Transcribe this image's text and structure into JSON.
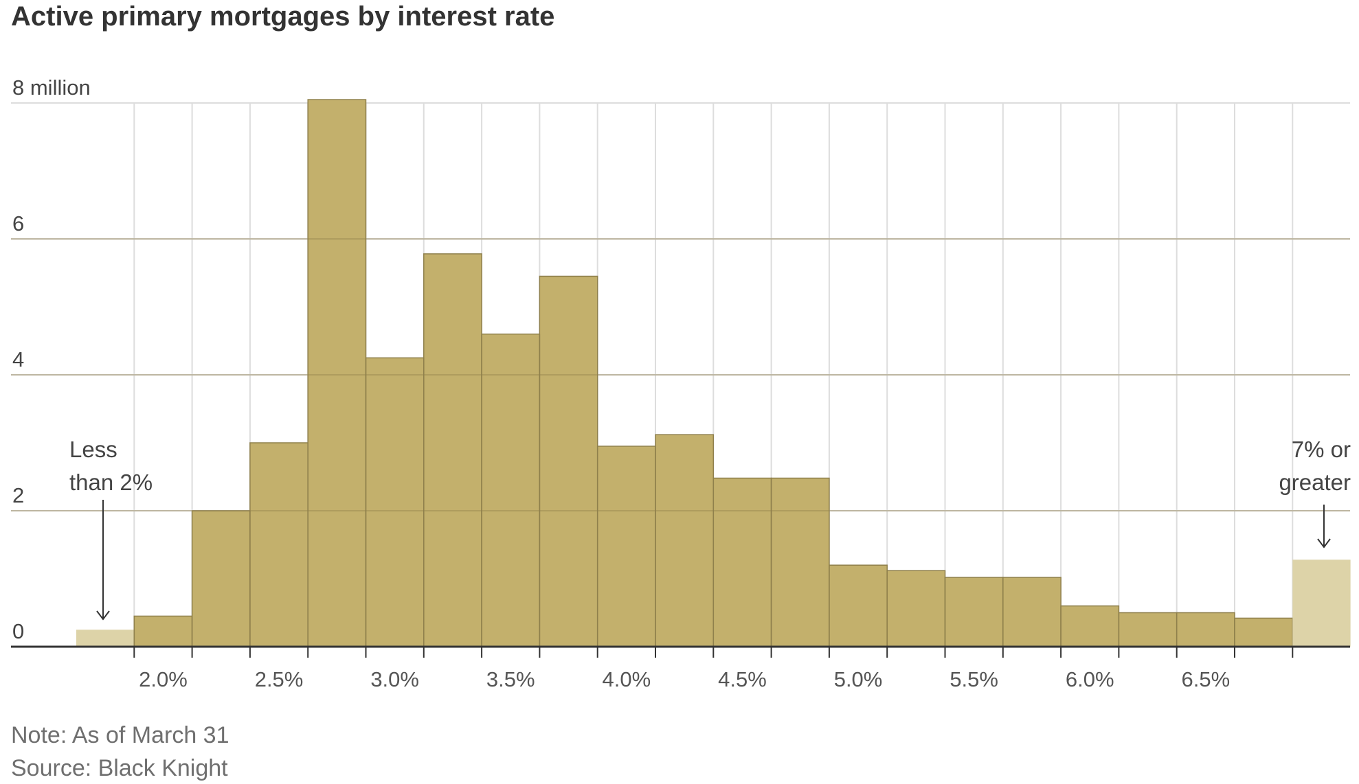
{
  "chart_data": {
    "type": "bar",
    "title": "Active primary mortgages by interest rate",
    "bins": [
      "1.75",
      "2.0",
      "2.25",
      "2.5",
      "2.75",
      "3.0",
      "3.25",
      "3.5",
      "3.75",
      "4.0",
      "4.25",
      "4.5",
      "4.75",
      "5.0",
      "5.25",
      "5.5",
      "5.75",
      "6.0",
      "6.25",
      "6.5",
      "6.75",
      "7.0"
    ],
    "values": [
      0.25,
      0.45,
      2.0,
      3.0,
      8.05,
      4.25,
      5.78,
      4.6,
      5.45,
      2.95,
      3.12,
      2.48,
      2.48,
      1.2,
      1.12,
      1.02,
      1.02,
      0.6,
      0.5,
      0.5,
      0.42,
      1.28
    ],
    "highlight": [
      "light",
      "dark",
      "dark",
      "dark",
      "dark",
      "dark",
      "dark",
      "dark",
      "dark",
      "dark",
      "dark",
      "dark",
      "dark",
      "dark",
      "dark",
      "dark",
      "dark",
      "dark",
      "dark",
      "dark",
      "dark",
      "light"
    ],
    "colors": {
      "bar": "#c3b06c",
      "bar_light": "#ddd3a8",
      "bar_stroke": "#8f804c",
      "grid": "#dddddd",
      "axis": "#333333"
    },
    "xticks": [
      "2.0%",
      "2.5%",
      "3.0%",
      "3.5%",
      "4.0%",
      "4.5%",
      "5.0%",
      "5.5%",
      "6.0%",
      "6.5%"
    ],
    "yticks": [
      "0",
      "2",
      "4",
      "6",
      "8 million"
    ],
    "ylim": [
      0,
      8
    ],
    "annotations": {
      "left": [
        "Less",
        "than 2%"
      ],
      "right": [
        "7% or",
        "greater"
      ]
    },
    "grid": true
  },
  "footer": {
    "note": "Note: As of March 31",
    "source": "Source: Black Knight"
  }
}
